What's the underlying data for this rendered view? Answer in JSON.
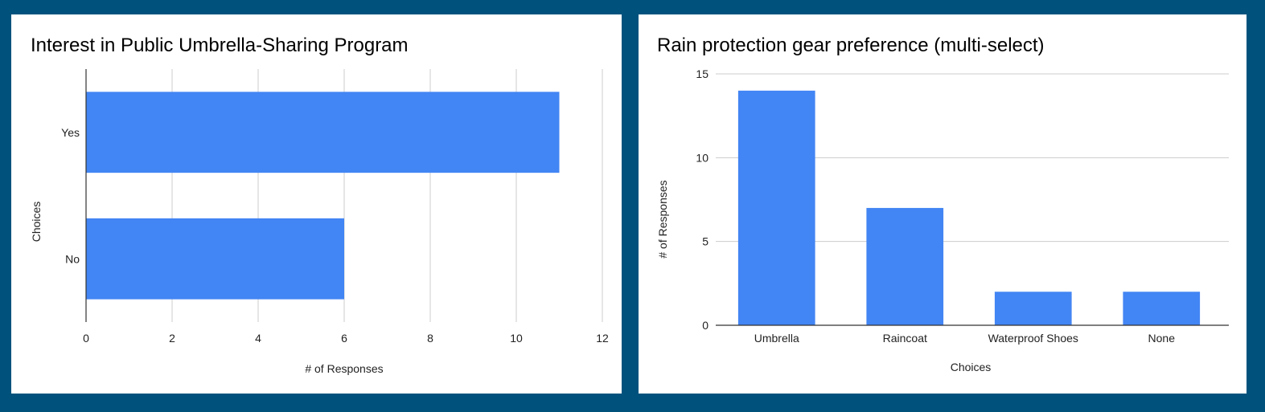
{
  "colors": {
    "background": "#00527d",
    "bar": "#4285f4",
    "panel": "#ffffff"
  },
  "chart_data": [
    {
      "type": "bar",
      "orientation": "horizontal",
      "title": "Interest in Public Umbrella-Sharing Program",
      "categories": [
        "Yes",
        "No"
      ],
      "values": [
        11,
        6
      ],
      "xlabel": "# of Responses",
      "ylabel": "Choices",
      "xlim": [
        0,
        12
      ],
      "xticks": [
        "0",
        "2",
        "4",
        "6",
        "8",
        "10",
        "12"
      ],
      "grid": true
    },
    {
      "type": "bar",
      "orientation": "vertical",
      "title": "Rain protection gear preference (multi-select)",
      "categories": [
        "Umbrella",
        "Raincoat",
        "Waterproof Shoes",
        "None"
      ],
      "values": [
        14,
        7,
        2,
        2
      ],
      "xlabel": "Choices",
      "ylabel": "# of Responses",
      "ylim": [
        0,
        15
      ],
      "yticks": [
        "0",
        "5",
        "10",
        "15"
      ],
      "grid": true
    }
  ]
}
